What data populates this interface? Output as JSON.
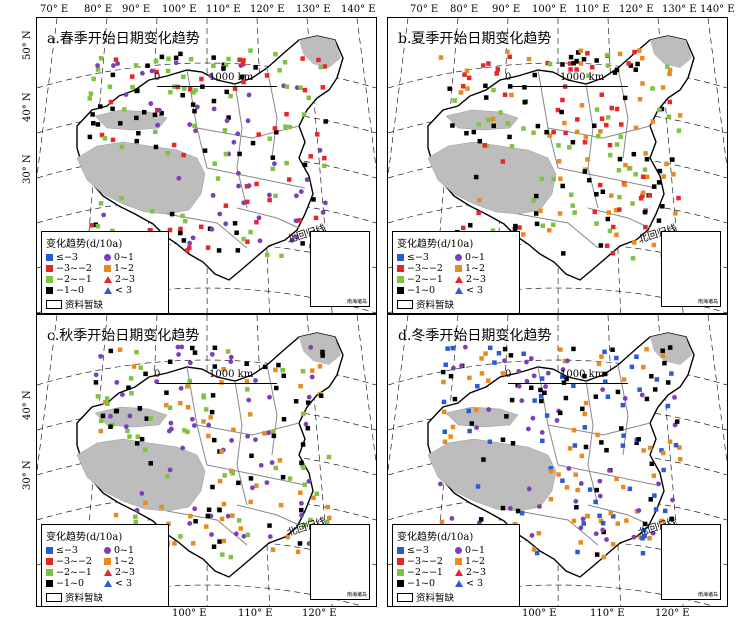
{
  "axes": {
    "top_left": [
      "70° E",
      "80° E",
      "90° E",
      "100° E",
      "110° E",
      "120° E",
      "130° E",
      "140° E"
    ],
    "top_right": [
      "70° E",
      "80° E",
      "90° E",
      "100° E",
      "110° E",
      "120° E",
      "130° E",
      "140° E"
    ],
    "bottom_left": [
      "100° E",
      "110° E",
      "120° E"
    ],
    "bottom_right": [
      "100° E",
      "110° E",
      "120° E"
    ],
    "left_lats_top": [
      "50° N",
      "40° N",
      "30° N"
    ],
    "left_lats_bottom": [
      "40° N",
      "30° N"
    ]
  },
  "panels": [
    {
      "id": "a",
      "title": "a.春季开始日期变化趋势",
      "point_colors": [
        "#000000",
        "#7ec242",
        "#e8262a",
        "#7b3fb8"
      ]
    },
    {
      "id": "b",
      "title": "b.夏季开始日期变化趋势",
      "point_colors": [
        "#7ec242",
        "#e8262a",
        "#000000",
        "#e88a1f"
      ]
    },
    {
      "id": "c",
      "title": "c.秋季开始日期变化趋势",
      "point_colors": [
        "#7b3fb8",
        "#e88a1f",
        "#7ec242",
        "#000000"
      ]
    },
    {
      "id": "d",
      "title": "d.冬季开始日期变化趋势",
      "point_colors": [
        "#7b3fb8",
        "#e88a1f",
        "#2a5bd7",
        "#000000"
      ]
    }
  ],
  "scale_label": "1000 km",
  "scale_zero": "0",
  "tropic_label": "北回归线",
  "legend": {
    "title": "变化趋势(d/10a)",
    "items": [
      {
        "label": "≤−3",
        "shape": "square",
        "color": "#2a5bd7"
      },
      {
        "label": "0~1",
        "shape": "circle",
        "color": "#7b3fb8"
      },
      {
        "label": "−3~−2",
        "shape": "square",
        "color": "#e8262a"
      },
      {
        "label": "1~2",
        "shape": "square",
        "color": "#e88a1f"
      },
      {
        "label": "−2~−1",
        "shape": "square",
        "color": "#7ec242"
      },
      {
        "label": "2~3",
        "shape": "triangle",
        "color": "#e8262a"
      },
      {
        "label": "−1~0",
        "shape": "square",
        "color": "#000000"
      },
      {
        "label": "< 3",
        "shape": "triangle",
        "color": "#2a5bd7"
      }
    ],
    "nodata": "资料暂缺"
  },
  "inset_label": "南海诸岛"
}
